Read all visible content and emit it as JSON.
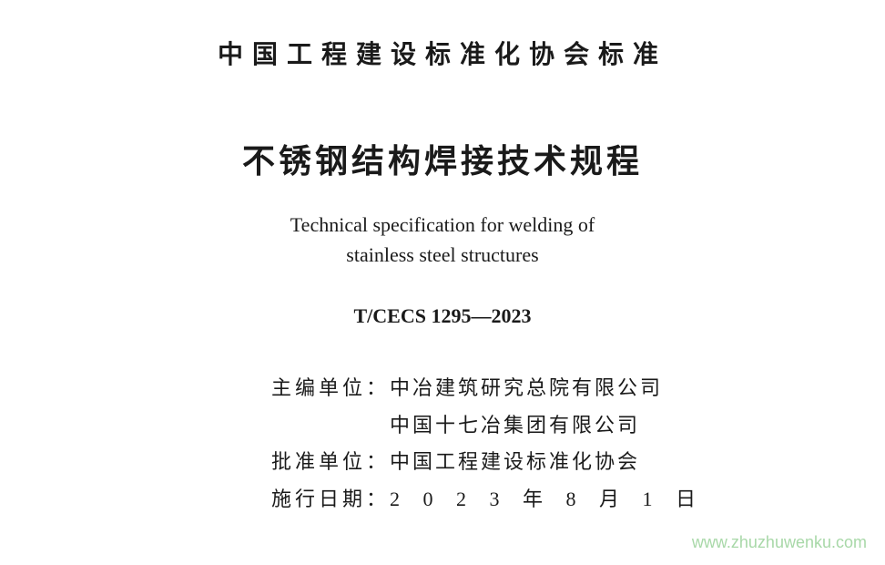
{
  "org_heading": "中国工程建设标准化协会标准",
  "title_zh": "不锈钢结构焊接技术规程",
  "title_en_line1": "Technical specification for welding of",
  "title_en_line2": "stainless steel structures",
  "standard_code": "T/CECS 1295—2023",
  "credits": {
    "editor_label": "主编单位：",
    "editor_value1": "中冶建筑研究总院有限公司",
    "editor_value2": "中国十七冶集团有限公司",
    "approver_label": "批准单位：",
    "approver_value": "中国工程建设标准化协会",
    "date_label": "施行日期：",
    "date_value": "2 0 2 3 年 8 月 1 日"
  },
  "watermark": "www.zhuzhuwenku.com"
}
